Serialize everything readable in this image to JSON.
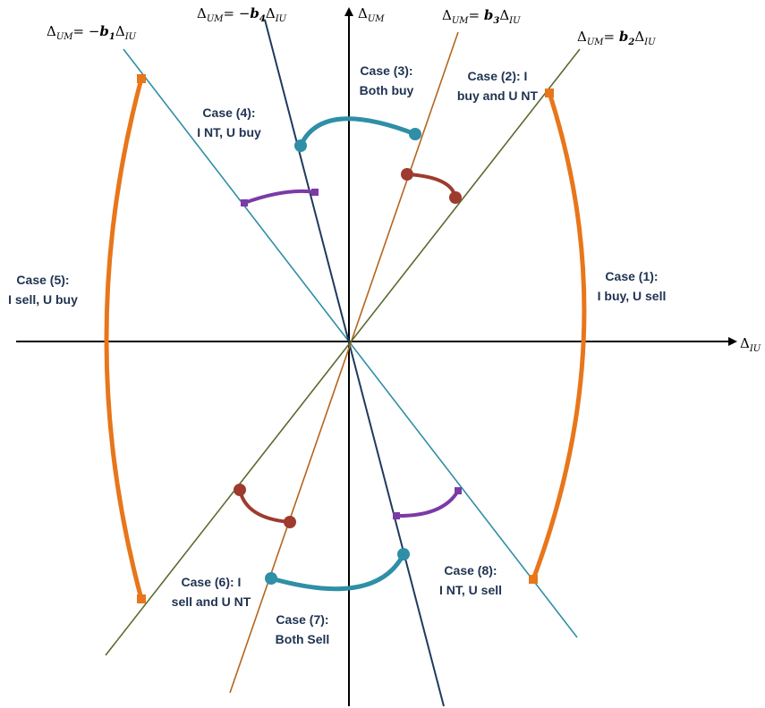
{
  "axes": {
    "x_label": {
      "base": "Δ",
      "sub": "IU"
    },
    "y_label": {
      "base": "Δ",
      "sub": "UM"
    }
  },
  "lines": [
    {
      "name": "line-b1",
      "color": "#2e8fa6",
      "label": {
        "pre": "Δ",
        "pre_sub": "UM",
        "eq": "= −",
        "coef": "b",
        "coef_sub": "1",
        "post": "Δ",
        "post_sub": "IU"
      }
    },
    {
      "name": "line-b4",
      "color": "#1f3a5f",
      "label": {
        "pre": "Δ",
        "pre_sub": "UM",
        "eq": "= −",
        "coef": "b",
        "coef_sub": "4",
        "post": "Δ",
        "post_sub": "IU"
      }
    },
    {
      "name": "line-b3",
      "color": "#b5651d",
      "label": {
        "pre": "Δ",
        "pre_sub": "UM",
        "eq": "= ",
        "coef": "b",
        "coef_sub": "3",
        "post": "Δ",
        "post_sub": "IU"
      }
    },
    {
      "name": "line-b2",
      "color": "#5a6b2f",
      "label": {
        "pre": "Δ",
        "pre_sub": "UM",
        "eq": "= ",
        "coef": "b",
        "coef_sub": "2",
        "post": "Δ",
        "post_sub": "IU"
      }
    }
  ],
  "arc_colors": {
    "orange": "#e8761a",
    "teal": "#2e8fa6",
    "red": "#9e3b2e",
    "purple": "#7b3aa6"
  },
  "cases": {
    "case1": [
      "Case (1):",
      "I buy, U sell"
    ],
    "case2": [
      "Case (2): I",
      "buy and U NT"
    ],
    "case3": [
      "Case (3):",
      "Both buy"
    ],
    "case4": [
      "Case (4):",
      "I NT, U buy"
    ],
    "case5": [
      "Case (5):",
      "I sell, U buy"
    ],
    "case6": [
      "Case (6): I",
      "sell and U NT"
    ],
    "case7": [
      "Case (7):",
      "Both Sell"
    ],
    "case8": [
      "Case (8):",
      "I NT, U sell"
    ]
  }
}
